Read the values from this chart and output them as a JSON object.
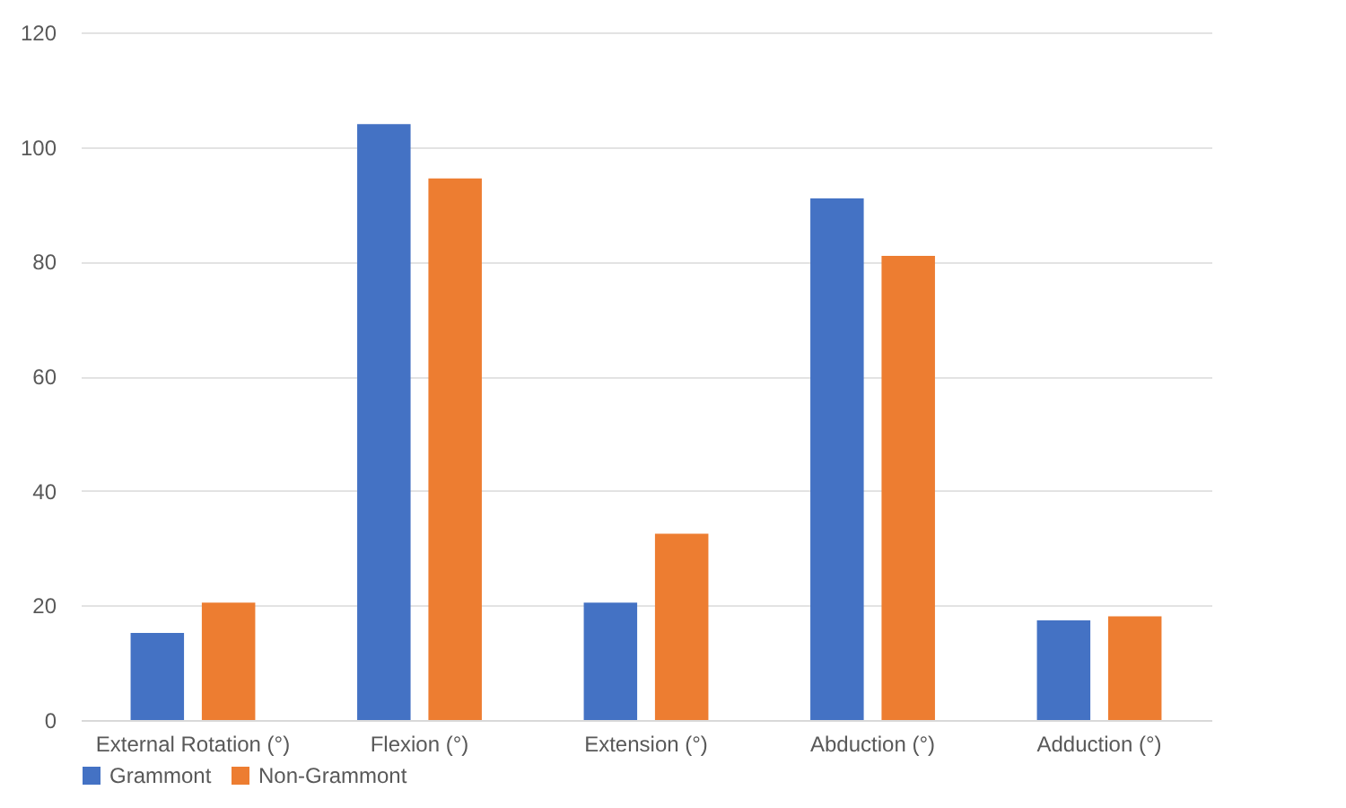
{
  "chart_data": {
    "type": "bar",
    "categories": [
      "External Rotation (°)",
      "Flexion (°)",
      "Extension (°)",
      "Abduction (°)",
      "Adduction (°)"
    ],
    "series": [
      {
        "name": "Grammont",
        "color": "#4472c4",
        "values": [
          15.2,
          104,
          20.5,
          91,
          17.4
        ]
      },
      {
        "name": "Non-Grammont",
        "color": "#ed7d31",
        "values": [
          20.5,
          94.5,
          32.5,
          81,
          18.1
        ]
      }
    ],
    "ylim": [
      0,
      120
    ],
    "yticks": [
      0,
      20,
      40,
      60,
      80,
      100,
      120
    ],
    "grid": "y",
    "legend": "bottom"
  }
}
